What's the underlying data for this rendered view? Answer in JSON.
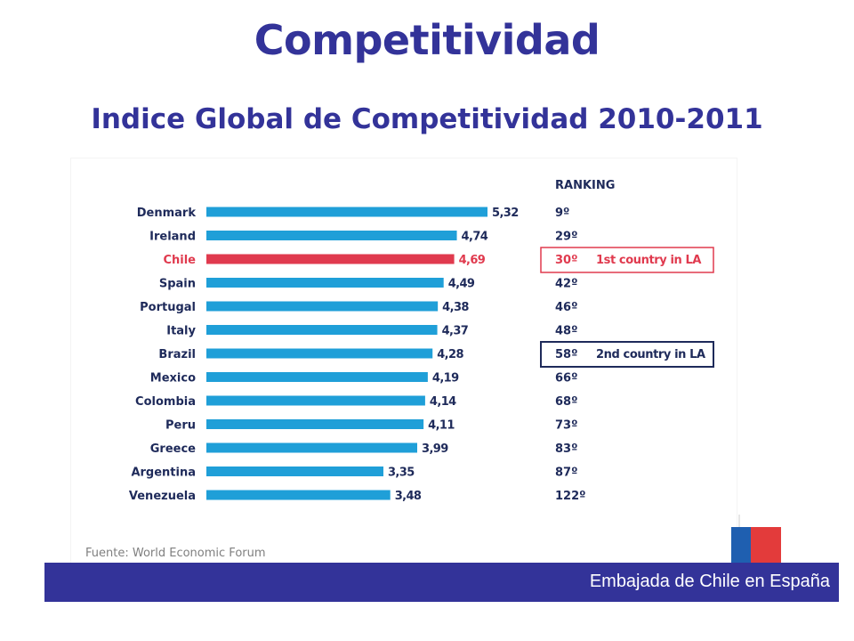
{
  "header": {
    "title": "Competitividad",
    "subtitle": "Indice Global de Competitividad 2010-2011"
  },
  "chart_data": {
    "type": "bar",
    "orientation": "horizontal",
    "categories": [
      "Denmark",
      "Ireland",
      "Chile",
      "Spain",
      "Portugal",
      "Italy",
      "Brazil",
      "Mexico",
      "Colombia",
      "Peru",
      "Greece",
      "Argentina",
      "Venezuela"
    ],
    "values": [
      5.32,
      4.74,
      4.69,
      4.49,
      4.38,
      4.37,
      4.28,
      4.19,
      4.14,
      4.11,
      3.99,
      3.35,
      3.48
    ],
    "value_labels": [
      "5,32",
      "4,74",
      "4,69",
      "4,49",
      "4,38",
      "4,37",
      "4,28",
      "4,19",
      "4,14",
      "4,11",
      "3,99",
      "3,35",
      "3,48"
    ],
    "ranking_header": "RANKING",
    "rankings": [
      "9º",
      "29º",
      "30º",
      "42º",
      "46º",
      "48º",
      "58º",
      "66º",
      "68º",
      "73º",
      "83º",
      "87º",
      "122º"
    ],
    "highlights": [
      {
        "index": 2,
        "label": "1st country in LA",
        "color": "#e03a4e"
      },
      {
        "index": 6,
        "label": "2nd country in LA",
        "color": "#1e2a5a"
      }
    ],
    "colors": {
      "bar": "#1f9fd8",
      "highlight_bar": "#e03a4e",
      "label": "#1e2a5a"
    },
    "source": "Fuente: World Economic Forum"
  },
  "footer": {
    "text": "Embajada de Chile en España"
  }
}
